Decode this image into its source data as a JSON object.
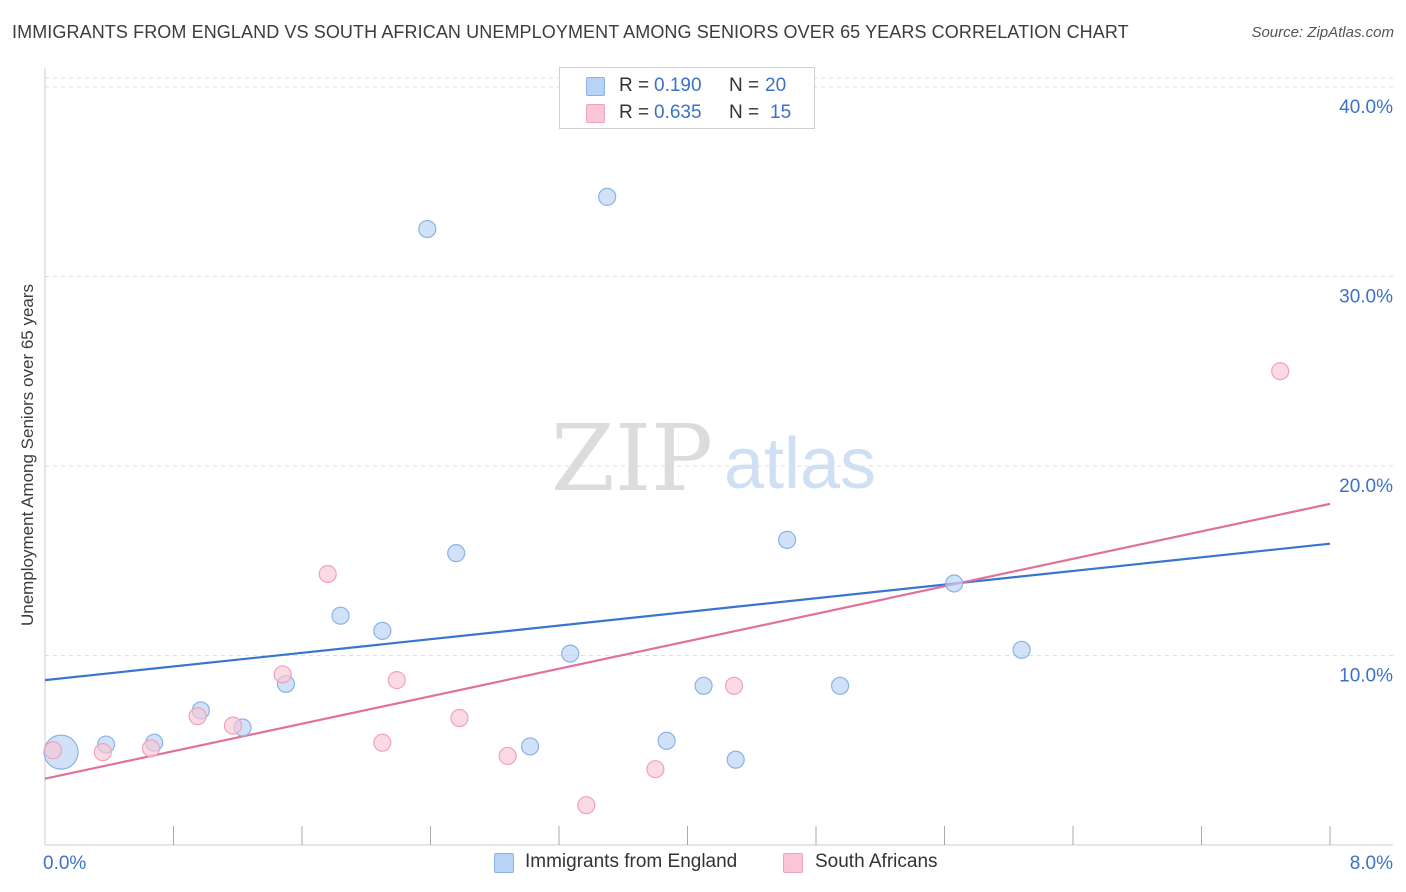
{
  "title": "IMMIGRANTS FROM ENGLAND VS SOUTH AFRICAN UNEMPLOYMENT AMONG SENIORS OVER 65 YEARS CORRELATION CHART",
  "source": "Source: ZipAtlas.com",
  "watermark": {
    "zip": "ZIP",
    "atlas": "atlas"
  },
  "legend": {
    "r_label": "R =",
    "n_label": "N =",
    "rows": [
      {
        "r": "0.190",
        "n": "20"
      },
      {
        "r": "0.635",
        "n": "15"
      }
    ]
  },
  "colors": {
    "blue_fill": "#b8d3f5",
    "blue_stroke": "#8ab2e6",
    "blue_line": "#3a74cf",
    "pink_fill": "#f9c6d5",
    "pink_stroke": "#eea3b9",
    "pink_line": "#e0729a",
    "grid": "#dddddd",
    "tick_text": "#3b72c9"
  },
  "chart_data": {
    "type": "scatter",
    "title": "IMMIGRANTS FROM ENGLAND VS SOUTH AFRICAN UNEMPLOYMENT AMONG SENIORS OVER 65 YEARS CORRELATION CHART",
    "xlabel": "",
    "ylabel": "Unemployment Among Seniors over 65 years",
    "xlim": [
      0,
      8
    ],
    "ylim": [
      0,
      41
    ],
    "x_tick_labels": [
      "0.0%",
      "8.0%"
    ],
    "y_ticks": [
      10,
      20,
      30,
      40
    ],
    "y_tick_labels": [
      "10.0%",
      "20.0%",
      "30.0%",
      "40.0%"
    ],
    "series": [
      {
        "name": "Immigrants from England",
        "color": "blue",
        "points": [
          {
            "x": 0.1,
            "y": 4.9,
            "size": "large"
          },
          {
            "x": 0.38,
            "y": 5.3
          },
          {
            "x": 0.68,
            "y": 5.4
          },
          {
            "x": 0.97,
            "y": 7.1
          },
          {
            "x": 1.23,
            "y": 6.2
          },
          {
            "x": 1.5,
            "y": 8.5
          },
          {
            "x": 1.84,
            "y": 12.1
          },
          {
            "x": 2.1,
            "y": 11.3
          },
          {
            "x": 2.38,
            "y": 32.5
          },
          {
            "x": 2.56,
            "y": 15.4
          },
          {
            "x": 3.02,
            "y": 5.2
          },
          {
            "x": 3.27,
            "y": 10.1
          },
          {
            "x": 3.5,
            "y": 34.2
          },
          {
            "x": 3.87,
            "y": 5.5
          },
          {
            "x": 4.1,
            "y": 8.4
          },
          {
            "x": 4.3,
            "y": 4.5
          },
          {
            "x": 4.62,
            "y": 16.1
          },
          {
            "x": 4.95,
            "y": 8.4
          },
          {
            "x": 5.66,
            "y": 13.8
          },
          {
            "x": 6.08,
            "y": 10.3
          }
        ],
        "trend": {
          "x": [
            0,
            8
          ],
          "y": [
            8.7,
            15.9
          ]
        }
      },
      {
        "name": "South Africans",
        "color": "pink",
        "points": [
          {
            "x": 0.05,
            "y": 5.0
          },
          {
            "x": 0.36,
            "y": 4.9
          },
          {
            "x": 0.66,
            "y": 5.1
          },
          {
            "x": 0.95,
            "y": 6.8
          },
          {
            "x": 1.17,
            "y": 6.3
          },
          {
            "x": 1.48,
            "y": 9.0
          },
          {
            "x": 1.76,
            "y": 14.3
          },
          {
            "x": 2.1,
            "y": 5.4
          },
          {
            "x": 2.19,
            "y": 8.7
          },
          {
            "x": 2.58,
            "y": 6.7
          },
          {
            "x": 2.88,
            "y": 4.7
          },
          {
            "x": 3.37,
            "y": 2.1
          },
          {
            "x": 3.8,
            "y": 4.0
          },
          {
            "x": 4.29,
            "y": 8.4
          },
          {
            "x": 7.69,
            "y": 25.0
          }
        ],
        "trend": {
          "x": [
            0,
            8
          ],
          "y": [
            3.5,
            18.0
          ]
        }
      }
    ]
  }
}
